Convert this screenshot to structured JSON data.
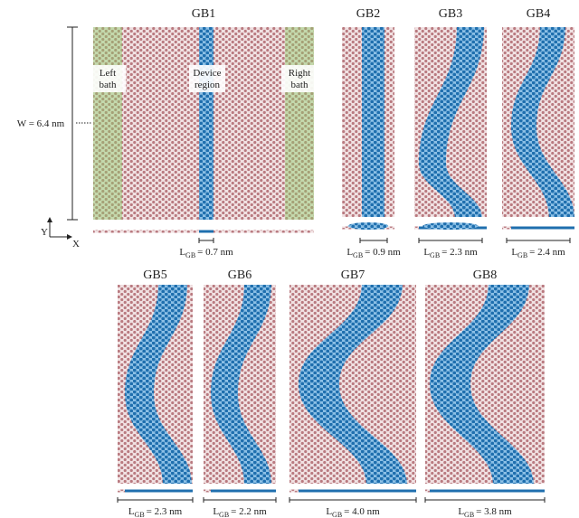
{
  "figure": {
    "panels": [
      {
        "title": "GB1",
        "lgb": {
          "symbol": "L",
          "subscript": "GB",
          "value": "= 0.7 nm"
        }
      },
      {
        "title": "GB2",
        "lgb": {
          "symbol": "L",
          "subscript": "GB",
          "value": "= 0.9 nm"
        }
      },
      {
        "title": "GB3",
        "lgb": {
          "symbol": "L",
          "subscript": "GB",
          "value": "= 2.3 nm"
        }
      },
      {
        "title": "GB4",
        "lgb": {
          "symbol": "L",
          "subscript": "GB",
          "value": "= 2.4 nm"
        }
      },
      {
        "title": "GB5",
        "lgb": {
          "symbol": "L",
          "subscript": "GB",
          "value": "= 2.3 nm"
        }
      },
      {
        "title": "GB6",
        "lgb": {
          "symbol": "L",
          "subscript": "GB",
          "value": "= 2.2 nm"
        }
      },
      {
        "title": "GB7",
        "lgb": {
          "symbol": "L",
          "subscript": "GB",
          "value": "= 4.0 nm"
        }
      },
      {
        "title": "GB8",
        "lgb": {
          "symbol": "L",
          "subscript": "GB",
          "value": "= 3.8 nm"
        }
      }
    ],
    "annotations": {
      "width": "W = 6.4 nm",
      "left_bath": [
        "Left",
        "bath"
      ],
      "device_region": [
        "Device",
        "region"
      ],
      "right_bath": [
        "Right",
        "bath"
      ],
      "axis_y": "Y",
      "axis_x": "X"
    }
  }
}
